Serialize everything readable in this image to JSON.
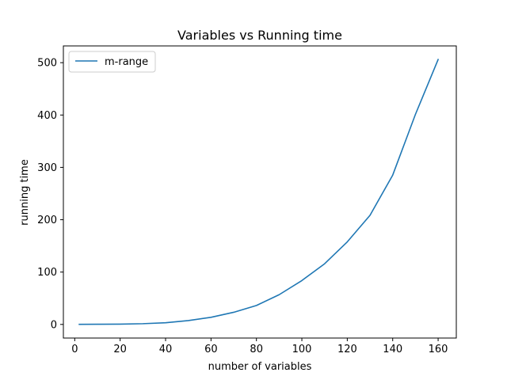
{
  "chart_data": {
    "type": "line",
    "title": "Variables vs Running time",
    "xlabel": "number of variables",
    "ylabel": "running time",
    "xlim": [
      -5,
      168
    ],
    "ylim": [
      -26,
      532
    ],
    "xticks": [
      0,
      20,
      40,
      60,
      80,
      100,
      120,
      140,
      160
    ],
    "yticks": [
      0,
      100,
      200,
      300,
      400,
      500
    ],
    "grid": false,
    "legend_position": "upper-left",
    "series": [
      {
        "name": "m-range",
        "color": "#1f77b4",
        "x": [
          2,
          10,
          20,
          30,
          40,
          50,
          60,
          70,
          80,
          90,
          100,
          110,
          120,
          130,
          140,
          150,
          160
        ],
        "y": [
          0.2,
          0.3,
          0.6,
          1.4,
          3.2,
          7.4,
          13.6,
          23.2,
          36.2,
          56.8,
          83.8,
          115.8,
          157.7,
          208.4,
          285.2,
          401.2,
          506.0
        ]
      }
    ]
  }
}
